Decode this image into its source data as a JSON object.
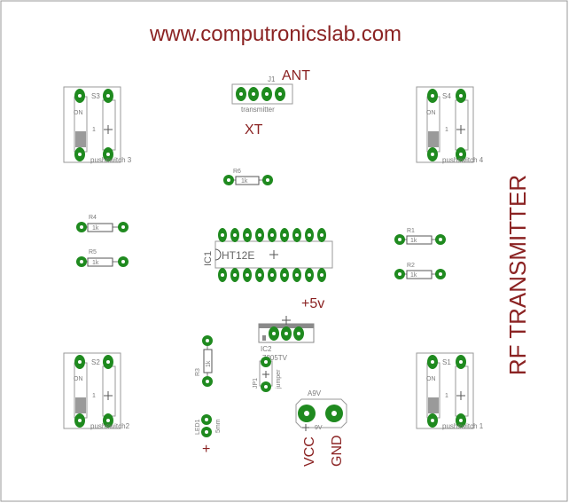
{
  "website": "www.computronicslab.com",
  "board_title": "RF TRANSMITTER",
  "labels": {
    "ant": "ANT",
    "xt": "XT",
    "plus5v": "+5v",
    "vcc": "VCC",
    "gnd": "GND",
    "plus": "+"
  },
  "connector_j1": {
    "ref": "J1",
    "value": "transmitter"
  },
  "ic1": {
    "ref": "IC1",
    "value": "HT12E"
  },
  "ic2": {
    "ref": "IC2",
    "value": "7805TV"
  },
  "jumper": {
    "ref": "JP1",
    "value": "jumper"
  },
  "battery": {
    "ref": "A9V",
    "value": "9V"
  },
  "led": {
    "ref": "LED1",
    "value": "5mm"
  },
  "resistors": {
    "r1": {
      "ref": "R1",
      "value": "1k"
    },
    "r2": {
      "ref": "R2",
      "value": "1k"
    },
    "r3": {
      "ref": "R3",
      "value": "1k"
    },
    "r4": {
      "ref": "R4",
      "value": "1k"
    },
    "r5": {
      "ref": "R5",
      "value": "1k"
    },
    "r6": {
      "ref": "R6",
      "value": "1k"
    }
  },
  "switches": {
    "s1": {
      "ref": "S1",
      "name": "pushswitch 1",
      "on": "ON",
      "pin": "1"
    },
    "s2": {
      "ref": "S2",
      "name": "pushswitch2",
      "on": "ON",
      "pin": "1"
    },
    "s3": {
      "ref": "S3",
      "name": "pushswitch 3",
      "on": "ON",
      "pin": "1"
    },
    "s4": {
      "ref": "S4",
      "name": "pushswitch 4",
      "on": "ON",
      "pin": "1"
    }
  }
}
